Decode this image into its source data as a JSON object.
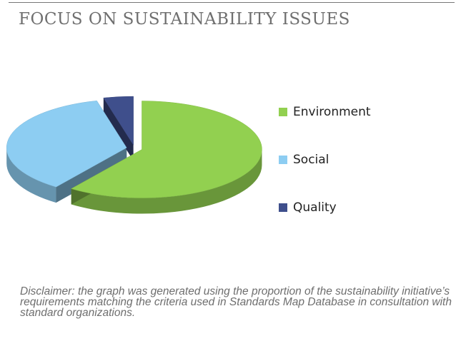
{
  "header": {
    "title": "FOCUS ON SUSTAINABILITY ISSUES"
  },
  "chart_data": {
    "type": "pie",
    "title": "",
    "categories": [
      "Environment",
      "Social",
      "Quality"
    ],
    "values": [
      60,
      36,
      4
    ],
    "colors": [
      "#92d050",
      "#8dcdf2",
      "#3f4f8c"
    ],
    "legend_position": "right",
    "style": "3d-exploded"
  },
  "footer": {
    "disclaimer": "Disclaimer: the graph was generated using the proportion of the sustainability initiative’s requirements matching the criteria used in Standards Map Database in consultation with standard organizations."
  }
}
